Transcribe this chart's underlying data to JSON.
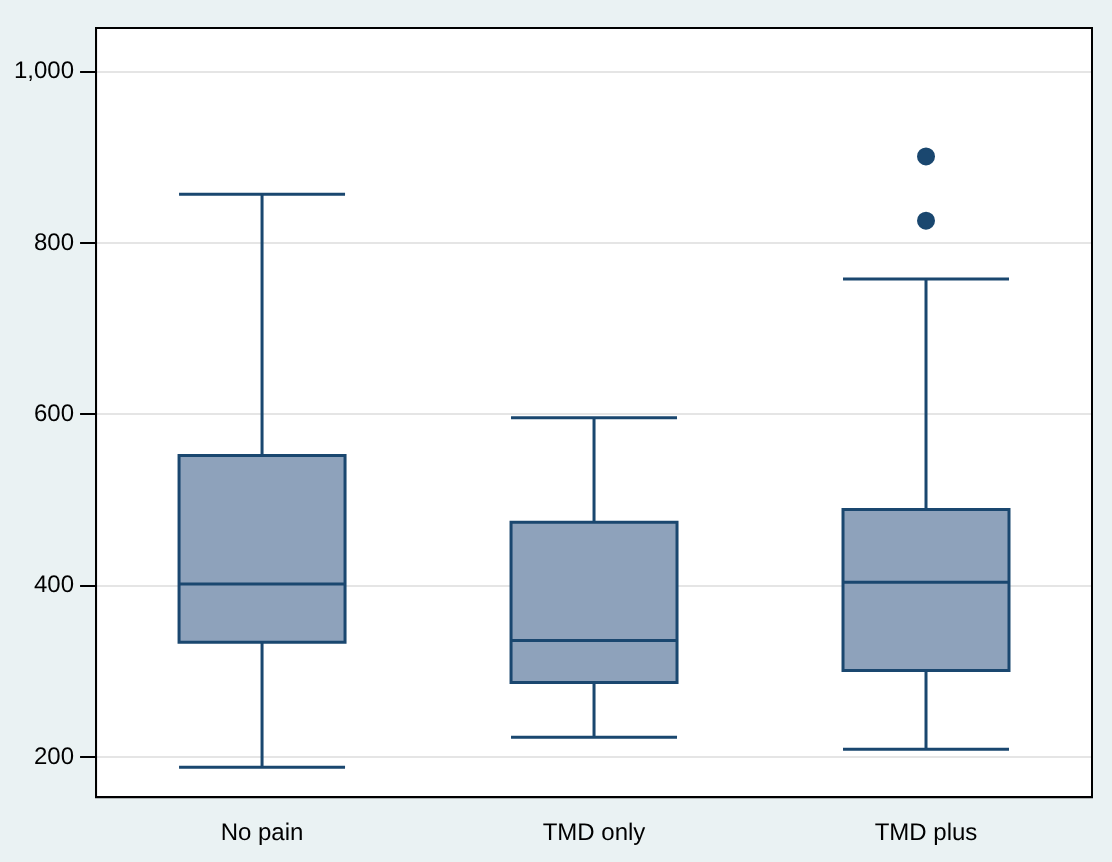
{
  "chart_data": {
    "type": "box",
    "categories": [
      "No pain",
      "TMD only",
      "TMD plus"
    ],
    "boxes": [
      {
        "low": 188,
        "q1": 334,
        "median": 402,
        "q3": 552,
        "high": 857
      },
      {
        "low": 223,
        "q1": 287,
        "median": 336,
        "q3": 474,
        "high": 596
      },
      {
        "low": 209,
        "q1": 301,
        "median": 404,
        "q3": 489,
        "high": 758,
        "outliers": [
          901,
          826
        ]
      }
    ],
    "color": "#8ea2bb",
    "ylim": [
      153,
      1051
    ],
    "yticks": [
      200,
      400,
      600,
      800,
      {
        "value": 1000,
        "label": "1,000"
      }
    ],
    "grid": "y",
    "legend": false
  }
}
